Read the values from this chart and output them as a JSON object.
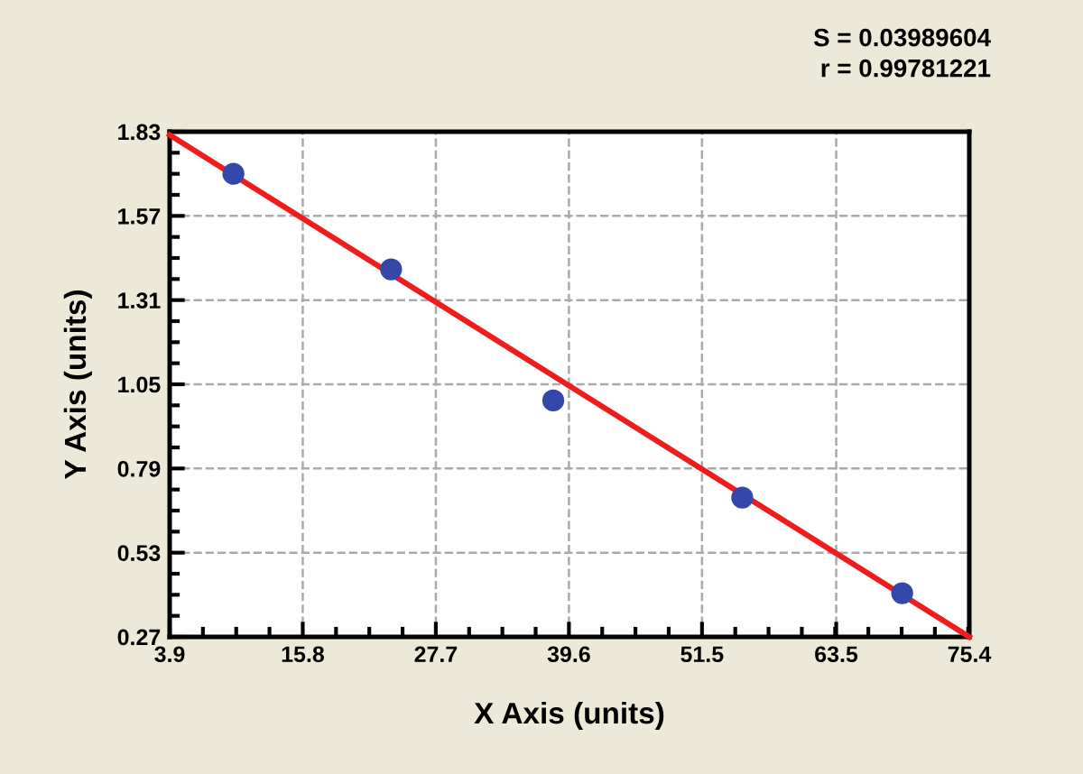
{
  "chart_data": {
    "type": "scatter",
    "xlabel": "X Axis (units)",
    "ylabel": "Y Axis (units)",
    "annotations": [
      "S = 0.03989604",
      "r = 0.99781221"
    ],
    "series": [
      {
        "marker": "circle",
        "color": "#3348a8",
        "x": [
          9.6,
          23.7,
          38.2,
          55.1,
          69.4
        ],
        "values": [
          1.7,
          1.405,
          1.0,
          0.7,
          0.405
        ]
      },
      {
        "type": "line",
        "marker": "none",
        "color": "#ee1c1c",
        "x": [
          3.9,
          75.4
        ],
        "values": [
          1.82,
          0.27
        ]
      }
    ],
    "xlim": [
      3.9,
      75.4
    ],
    "ylim": [
      0.27,
      1.83
    ],
    "xticks": [
      3.9,
      15.8,
      27.7,
      39.6,
      51.5,
      63.5,
      75.4
    ],
    "yticks": [
      0.27,
      0.53,
      0.79,
      1.05,
      1.31,
      1.57,
      1.83
    ],
    "grid": true,
    "legend": false
  }
}
